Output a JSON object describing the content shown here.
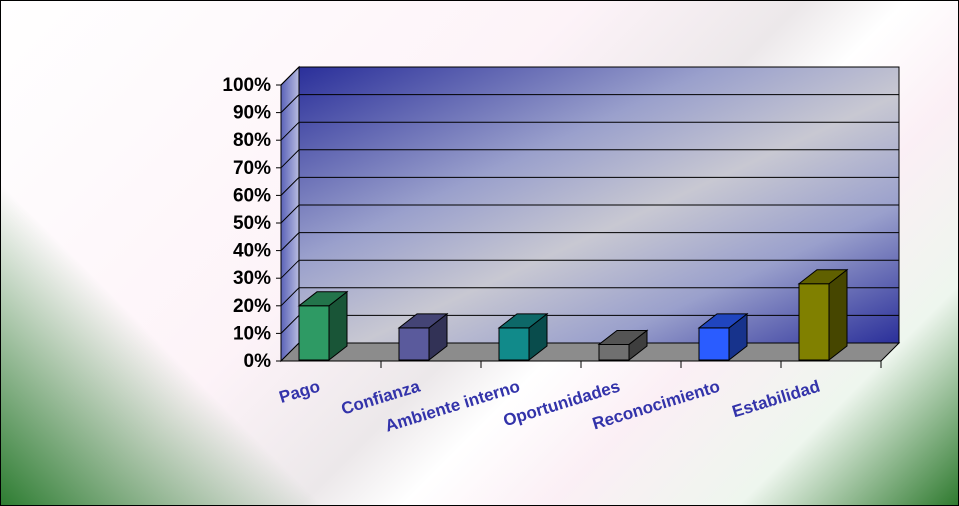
{
  "chart_data": {
    "type": "bar",
    "title": "",
    "xlabel": "",
    "ylabel": "",
    "categories": [
      "Pago",
      "Confianza",
      "Ambiente interno",
      "Oportunidades",
      "Reconocimiento",
      "Estabilidad"
    ],
    "values": [
      20,
      12,
      12,
      6,
      12,
      28
    ],
    "ylim": [
      0,
      100
    ],
    "yticks": [
      "0%",
      "10%",
      "20%",
      "30%",
      "40%",
      "50%",
      "60%",
      "70%",
      "80%",
      "90%",
      "100%"
    ],
    "grid": true,
    "legend": "none",
    "colors": [
      "#2e9a64",
      "#5a5a9c",
      "#118a8a",
      "#707070",
      "#2a5cff",
      "#808000"
    ]
  }
}
